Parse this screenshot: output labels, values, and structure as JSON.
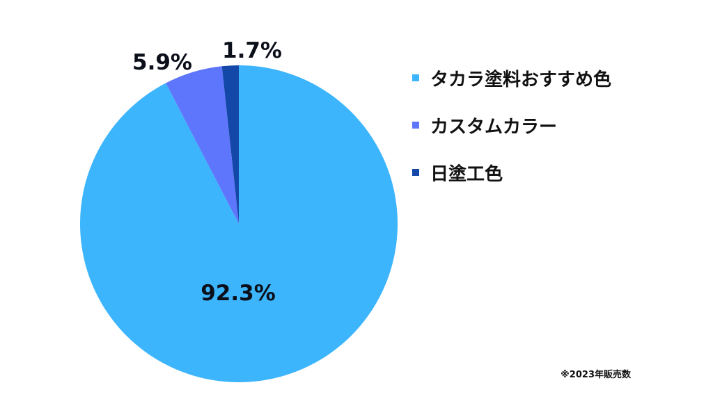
{
  "chart_data": {
    "type": "pie",
    "categories": [
      "タカラ塗料おすすめ色",
      "カスタムカラー",
      "日塗工色"
    ],
    "values": [
      92.3,
      5.9,
      1.7
    ],
    "value_labels": [
      "92.3%",
      "5.9%",
      "1.7%"
    ],
    "colors": [
      "#3db5fd",
      "#5e76fb",
      "#1347a8"
    ],
    "title": "",
    "legend_position": "right",
    "start_angle": "12 o'clock",
    "direction": "clockwise"
  },
  "legend": [
    {
      "label": "タカラ塗料おすすめ色",
      "color": "#3db5fd"
    },
    {
      "label": "カスタムカラー",
      "color": "#5e76fb"
    },
    {
      "label": "日塗工色",
      "color": "#1347a8"
    }
  ],
  "footnote": "※2023年販売数"
}
